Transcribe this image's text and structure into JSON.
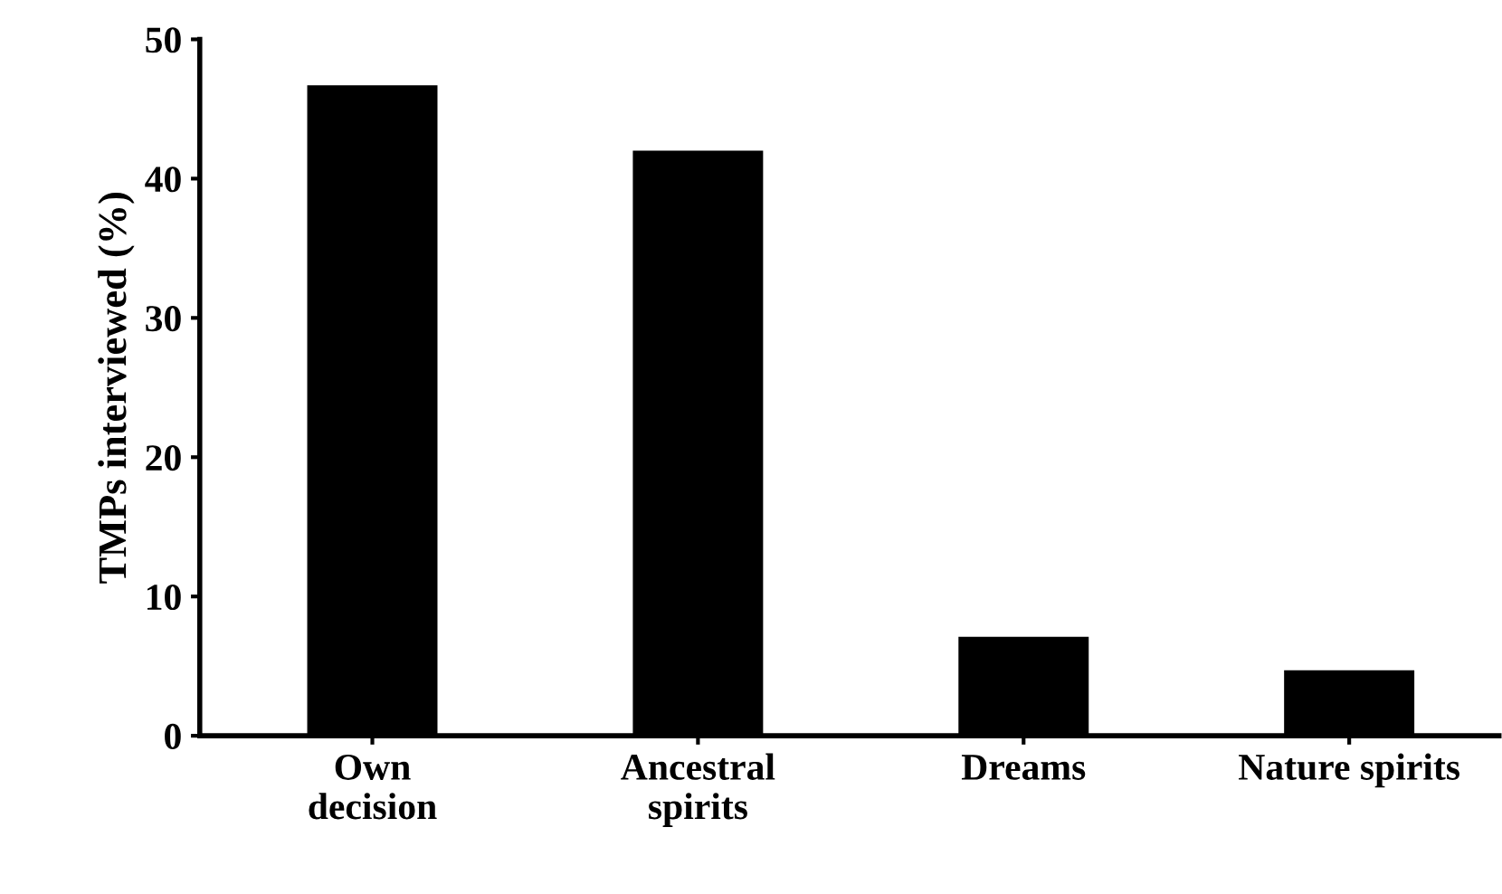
{
  "chart_data": {
    "type": "bar",
    "ylabel": "TMPs interviewed (%)",
    "categories": [
      "Own\ndecision",
      "Ancestral\nspirits",
      "Dreams",
      "Nature spirits"
    ],
    "values": [
      46.7,
      42.0,
      7.1,
      4.7
    ],
    "color": "#000000",
    "ylim": [
      0,
      50
    ],
    "yticks": [
      0,
      10,
      20,
      30,
      40,
      50
    ],
    "grid": false,
    "legend": false
  }
}
